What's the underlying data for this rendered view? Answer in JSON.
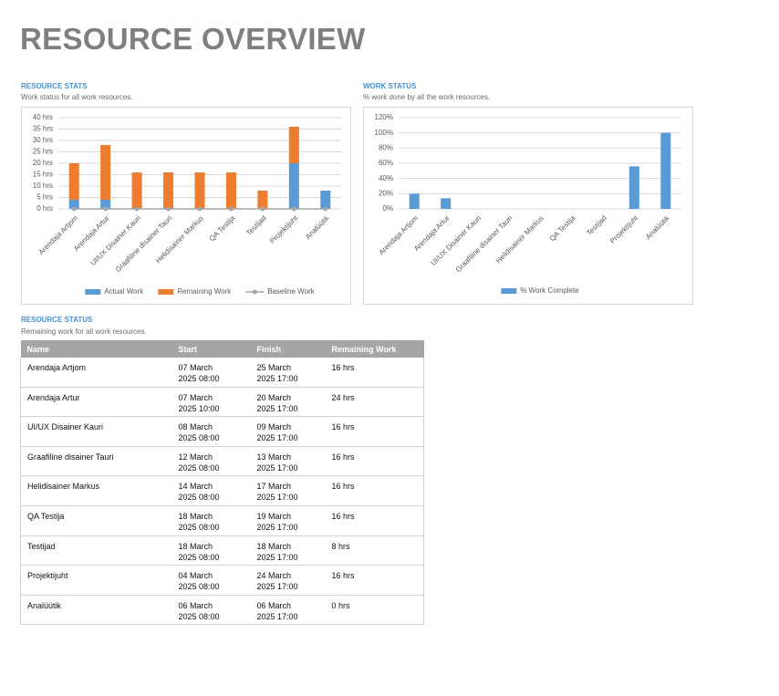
{
  "header": {
    "title": "RESOURCE OVERVIEW"
  },
  "chart_data": [
    {
      "type": "bar",
      "stacked": true,
      "title": "RESOURCE STATS",
      "subtitle": "Work status for all work resources.",
      "categories": [
        "Arendaja Artjom",
        "Arendaja Artur",
        "UI/UX Disainer Kauri",
        "Graafiline disainer Tauri",
        "Helidisainer Markus",
        "QA Testija",
        "Testijad",
        "Projektijuht",
        "Analüütik"
      ],
      "series": [
        {
          "name": "Actual Work",
          "color": "#5b9bd5",
          "values": [
            4,
            4,
            0,
            0,
            0,
            0,
            0,
            20,
            8
          ]
        },
        {
          "name": "Remaining Work",
          "color": "#ed7d31",
          "values": [
            16,
            24,
            16,
            16,
            16,
            16,
            8,
            16,
            0
          ]
        },
        {
          "name": "Baseline Work",
          "color": "#a5a5a5",
          "type": "line",
          "values": [
            0,
            0,
            0,
            0,
            0,
            0,
            0,
            0,
            0
          ]
        }
      ],
      "ylim": [
        0,
        40
      ],
      "yticks": [
        {
          "value": 0,
          "label": "0 hrs"
        },
        {
          "value": 5,
          "label": "5 hrs"
        },
        {
          "value": 10,
          "label": "10 hrs"
        },
        {
          "value": 15,
          "label": "15 hrs"
        },
        {
          "value": 20,
          "label": "20 hrs"
        },
        {
          "value": 25,
          "label": "25 hrs"
        },
        {
          "value": 30,
          "label": "30 hrs"
        },
        {
          "value": 35,
          "label": "35 hrs"
        },
        {
          "value": 40,
          "label": "40 hrs"
        }
      ],
      "grid": true,
      "legend": "bottom"
    },
    {
      "type": "bar",
      "title": "WORK STATUS",
      "subtitle": "% work done by all the work resources.",
      "categories": [
        "Arendaja Artjom",
        "Arendaja Artur",
        "UI/UX Disainer Kauri",
        "Graafiline disainer Tauri",
        "Helidisainer Markus",
        "QA Testija",
        "Testijad",
        "Projektijuht",
        "Analüütik"
      ],
      "series": [
        {
          "name": "% Work Complete",
          "color": "#5b9bd5",
          "values": [
            20,
            14,
            0,
            0,
            0,
            0,
            0,
            56,
            100
          ]
        }
      ],
      "ylim": [
        0,
        120
      ],
      "yticks": [
        {
          "value": 0,
          "label": "0%"
        },
        {
          "value": 20,
          "label": "20%"
        },
        {
          "value": 40,
          "label": "40%"
        },
        {
          "value": 60,
          "label": "60%"
        },
        {
          "value": 80,
          "label": "80%"
        },
        {
          "value": 100,
          "label": "100%"
        },
        {
          "value": 120,
          "label": "120%"
        }
      ],
      "grid": true,
      "legend": "bottom"
    }
  ],
  "table": {
    "title": "RESOURCE STATUS",
    "subtitle": "Remaining work for all work resources.",
    "columns": [
      "Name",
      "Start",
      "Finish",
      "Remaining Work"
    ],
    "rows": [
      [
        "Arendaja Artjom",
        "07 March 2025 08:00",
        "25 March 2025 17:00",
        "16 hrs"
      ],
      [
        "Arendaja Artur",
        "07 March 2025 10:00",
        "20 March 2025 17:00",
        "24 hrs"
      ],
      [
        "UI/UX Disainer Kauri",
        "08 March 2025 08:00",
        "09 March 2025 17:00",
        "16 hrs"
      ],
      [
        "Graafiline disainer Tauri",
        "12 March 2025 08:00",
        "13 March 2025 17:00",
        "16 hrs"
      ],
      [
        "Helidisainer Markus",
        "14 March 2025 08:00",
        "17 March 2025 17:00",
        "16 hrs"
      ],
      [
        "QA Testija",
        "18 March 2025 08:00",
        "19 March 2025 17:00",
        "16 hrs"
      ],
      [
        "Testijad",
        "18 March 2025 08:00",
        "18 March 2025 17:00",
        "8 hrs"
      ],
      [
        "Projektijuht",
        "04 March 2025 08:00",
        "24 March 2025 17:00",
        "16 hrs"
      ],
      [
        "Analüütik",
        "06 March 2025 08:00",
        "06 March 2025 17:00",
        "0 hrs"
      ]
    ]
  }
}
